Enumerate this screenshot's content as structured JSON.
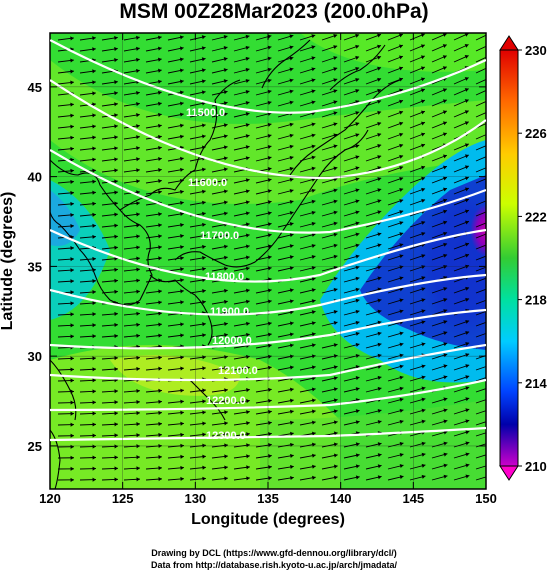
{
  "title": "MSM 00Z28Mar2023 (200.0hPa)",
  "axes": {
    "xlabel": "Longitude (degrees)",
    "ylabel": "Latitude  (degrees)",
    "xticks": [
      "120",
      "125",
      "130",
      "135",
      "140",
      "145",
      "150"
    ],
    "yticks": [
      "25",
      "30",
      "35",
      "40",
      "45"
    ]
  },
  "colorbar": {
    "labels": [
      "230",
      "226",
      "222",
      "218",
      "214",
      "210"
    ],
    "colors": [
      "#e00000",
      "#ff6600",
      "#ffcc00",
      "#ccff00",
      "#33cc33",
      "#00e0a0",
      "#00ccff",
      "#0066ff",
      "#0000cc",
      "#9900cc",
      "#ff00cc"
    ]
  },
  "contours": [
    {
      "label": "11500.0"
    },
    {
      "label": "11600.0"
    },
    {
      "label": "11700.0"
    },
    {
      "label": "11800.0"
    },
    {
      "label": "11900.0"
    },
    {
      "label": "12000.0"
    },
    {
      "label": "12100.0"
    },
    {
      "label": "12200.0"
    },
    {
      "label": "12300.0"
    }
  ],
  "credits": {
    "line1": "Drawing by DCL (https://www.gfd-dennou.org/library/dcl/)",
    "line2": "Data from http://database.rish.kyoto-u.ac.jp/arch/jmadata/"
  }
}
